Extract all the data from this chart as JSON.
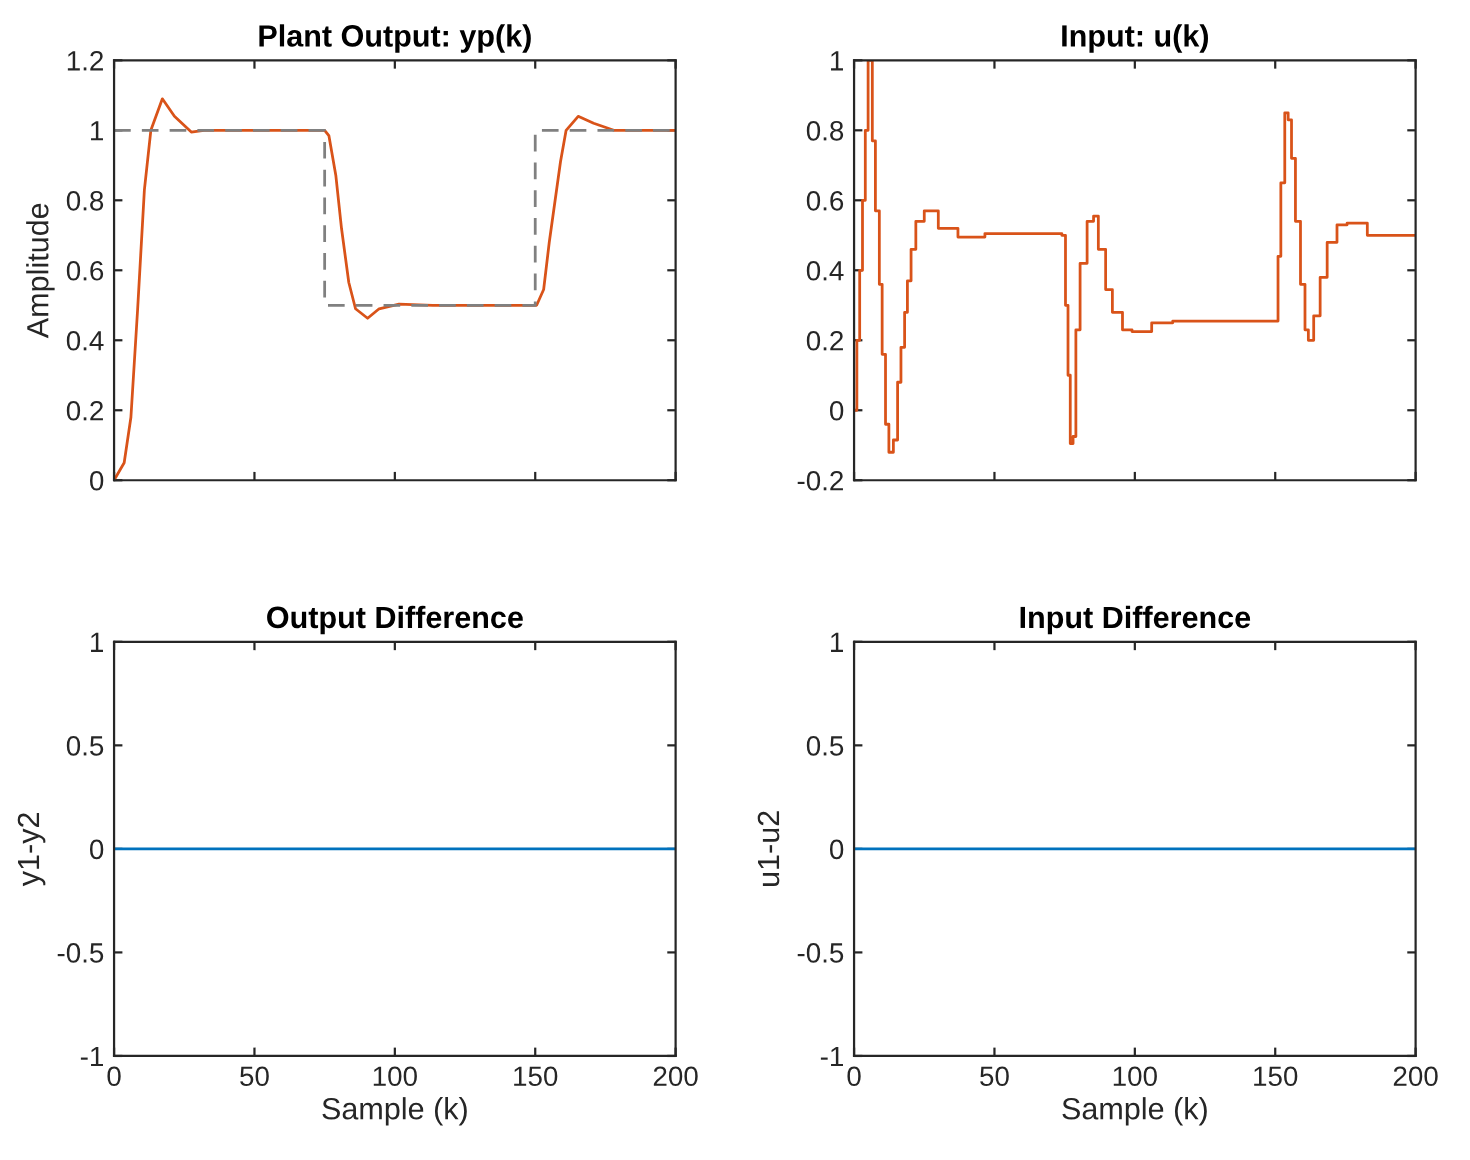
{
  "chart_data": [
    {
      "type": "line",
      "title": "Plant Output: yp(k)",
      "ylabel": "Amplitude",
      "xlim": [
        0,
        200
      ],
      "xticks": [
        {
          "value": 0,
          "label": null
        },
        {
          "value": 50,
          "label": null
        },
        {
          "value": 100,
          "label": null
        },
        {
          "value": 150,
          "label": null
        },
        {
          "value": 200,
          "label": null
        }
      ],
      "ylim": [
        0,
        1.2
      ],
      "yticks": [
        0,
        0.2,
        0.4,
        0.6,
        0.8,
        1,
        1.2
      ],
      "tick_labels": "y",
      "series": [
        {
          "color": "#d95319",
          "line_style": "solid",
          "x": [
            0,
            3.6,
            6,
            8.4,
            10.8,
            13.1,
            17.2,
            21.5,
            27.5,
            32,
            75,
            76.5,
            79,
            81,
            83.6,
            86,
            90.3,
            94.4,
            101.5,
            113.5,
            150.5,
            153,
            155,
            159,
            161,
            165.3,
            170.8,
            178,
            200
          ],
          "values": [
            0,
            0.05,
            0.18,
            0.49,
            0.83,
            1.0,
            1.09,
            1.04,
            0.995,
            1.0,
            1.0,
            0.985,
            0.87,
            0.72,
            0.565,
            0.49,
            0.463,
            0.49,
            0.503,
            0.5,
            0.5,
            0.545,
            0.68,
            0.91,
            1.0,
            1.04,
            1.02,
            1.0,
            1.0
          ]
        },
        {
          "color": "#808080",
          "line_style": "dashed",
          "x": [
            0,
            75,
            75,
            150,
            150,
            200
          ],
          "values": [
            1,
            1,
            0.5,
            0.5,
            1,
            1
          ]
        }
      ]
    },
    {
      "type": "step",
      "title": "Input: u(k)",
      "xlim": [
        0,
        200
      ],
      "xticks": [
        {
          "value": 0,
          "label": null
        },
        {
          "value": 50,
          "label": null
        },
        {
          "value": 100,
          "label": null
        },
        {
          "value": 150,
          "label": null
        },
        {
          "value": 200,
          "label": null
        }
      ],
      "ylim": [
        -0.2,
        1
      ],
      "yticks": [
        -0.2,
        0,
        0.2,
        0.4,
        0.6,
        0.8,
        1
      ],
      "tick_labels": "y",
      "series": [
        {
          "color": "#d95319",
          "line_style": "solid",
          "x": [
            0,
            1,
            2,
            3,
            4,
            5,
            6,
            6.5,
            7.6,
            9,
            10,
            11.2,
            12.4,
            14,
            15.5,
            16.7,
            18,
            19,
            20.3,
            22,
            25,
            30,
            37,
            46.6,
            74,
            75.3,
            76.2,
            77,
            78,
            79,
            80.5,
            83,
            85.3,
            87,
            89.6,
            92,
            95.6,
            99,
            106,
            113.5,
            150.5,
            151,
            152,
            153.4,
            154.6,
            155.8,
            157.2,
            159,
            160.6,
            161.8,
            163.7,
            166,
            168.5,
            172,
            175.6,
            182.8,
            190,
            200
          ],
          "values": [
            0,
            0.2,
            0.4,
            0.6,
            0.8,
            1.0,
            1.0,
            0.77,
            0.57,
            0.36,
            0.16,
            -0.04,
            -0.12,
            -0.085,
            0.08,
            0.18,
            0.28,
            0.37,
            0.46,
            0.54,
            0.57,
            0.52,
            0.495,
            0.505,
            0.5,
            0.3,
            0.1,
            -0.095,
            -0.075,
            0.23,
            0.42,
            0.54,
            0.555,
            0.46,
            0.345,
            0.28,
            0.23,
            0.225,
            0.25,
            0.255,
            0.255,
            0.44,
            0.65,
            0.85,
            0.83,
            0.72,
            0.54,
            0.36,
            0.23,
            0.2,
            0.27,
            0.38,
            0.48,
            0.53,
            0.535,
            0.5,
            0.5,
            0.5
          ]
        }
      ]
    },
    {
      "type": "line",
      "title": "Output Difference",
      "xlabel": "Sample (k)",
      "ylabel": "y1-y2",
      "xlim": [
        0,
        200
      ],
      "xticks": [
        0,
        50,
        100,
        150,
        200
      ],
      "ylim": [
        -1,
        1
      ],
      "yticks": [
        -1,
        -0.5,
        0,
        0.5,
        1
      ],
      "series": [
        {
          "color": "#0072bd",
          "line_style": "solid",
          "x": [
            0,
            200
          ],
          "values": [
            0,
            0
          ]
        }
      ]
    },
    {
      "type": "line",
      "title": "Input Difference",
      "xlabel": "Sample (k)",
      "ylabel": "u1-u2",
      "xlim": [
        0,
        200
      ],
      "xticks": [
        0,
        50,
        100,
        150,
        200
      ],
      "ylim": [
        -1,
        1
      ],
      "yticks": [
        -1,
        -0.5,
        0,
        0.5,
        1
      ],
      "series": [
        {
          "color": "#0072bd",
          "line_style": "solid",
          "x": [
            0,
            200
          ],
          "values": [
            0,
            0
          ]
        }
      ]
    }
  ]
}
